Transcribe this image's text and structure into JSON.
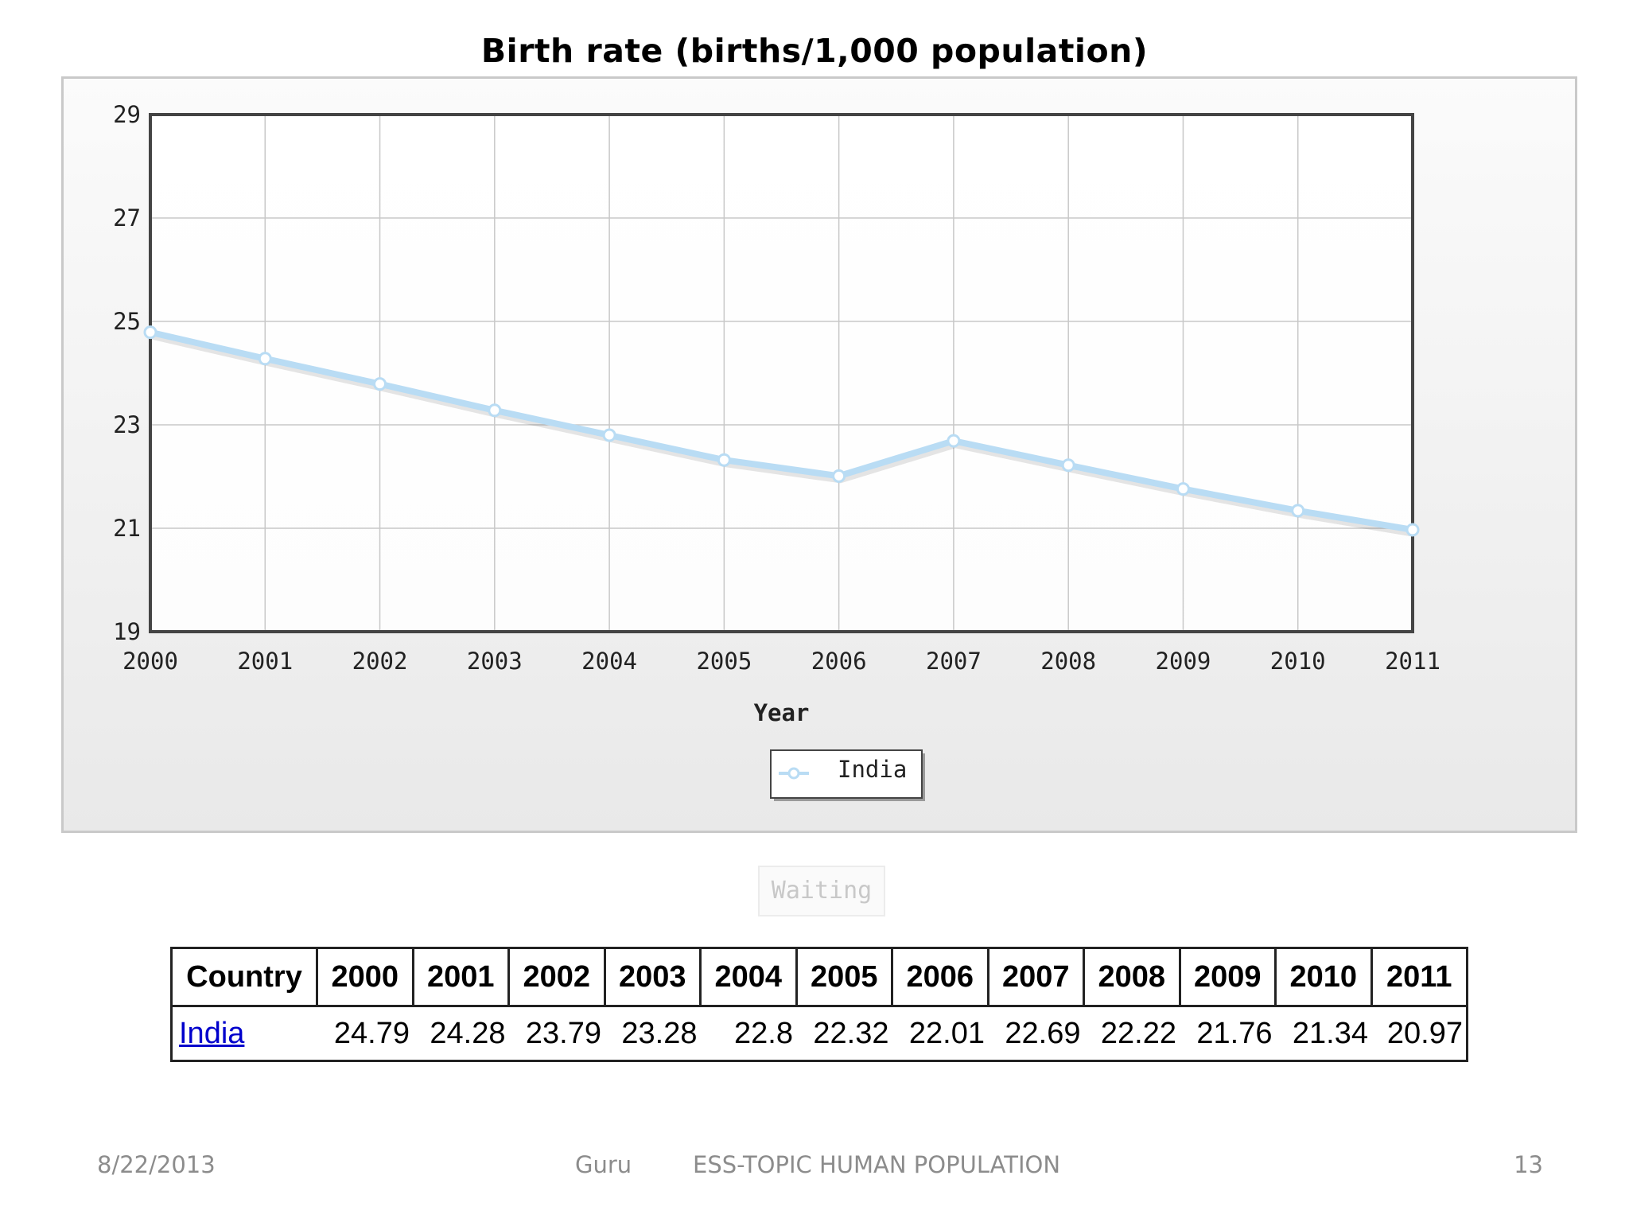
{
  "chart_data": {
    "type": "line",
    "title": "Birth rate (births/1,000 population)",
    "xlabel": "Year",
    "ylabel": "",
    "categories": [
      "2000",
      "2001",
      "2002",
      "2003",
      "2004",
      "2005",
      "2006",
      "2007",
      "2008",
      "2009",
      "2010",
      "2011"
    ],
    "series": [
      {
        "name": "India",
        "values": [
          24.79,
          24.28,
          23.79,
          23.28,
          22.8,
          22.32,
          22.01,
          22.69,
          22.22,
          21.76,
          21.34,
          20.97
        ],
        "color": "#b9dcf4"
      }
    ],
    "ylim": [
      19,
      29
    ],
    "yticks": [
      "19",
      "21",
      "23",
      "25",
      "27",
      "29"
    ],
    "grid": true,
    "legend_position": "bottom-center"
  },
  "status": {
    "waiting_label": "Waiting"
  },
  "table": {
    "headers": [
      "Country",
      "2000",
      "2001",
      "2002",
      "2003",
      "2004",
      "2005",
      "2006",
      "2007",
      "2008",
      "2009",
      "2010",
      "2011"
    ],
    "row": {
      "country": "India",
      "values": [
        "24.79",
        "24.28",
        "23.79",
        "23.28",
        "22.8",
        "22.32",
        "22.01",
        "22.69",
        "22.22",
        "21.76",
        "21.34",
        "20.97"
      ]
    }
  },
  "footer": {
    "date": "8/22/2013",
    "author": "Guru",
    "topic": "ESS-TOPIC HUMAN POPULATION",
    "page": "13"
  },
  "colors": {
    "series_line": "#b9dcf4",
    "link": "#0000cc",
    "footer_text": "#8c8c8c"
  }
}
